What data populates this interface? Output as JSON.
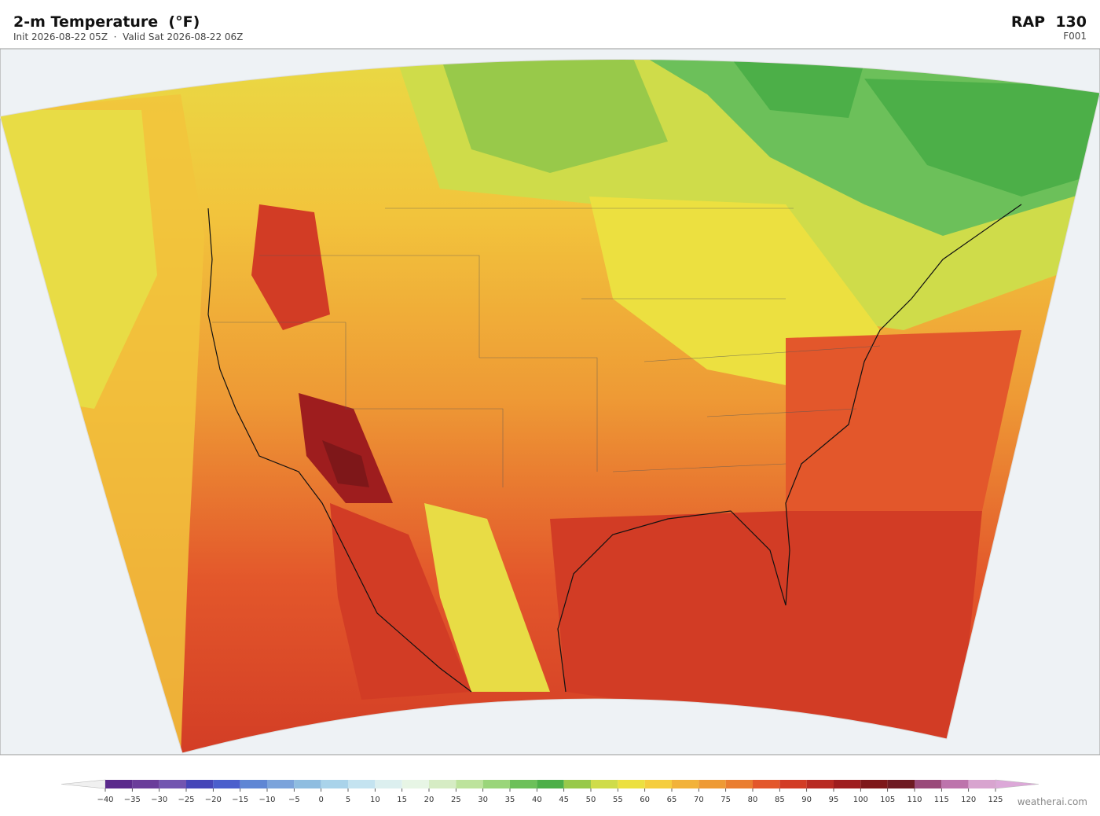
{
  "header": {
    "title": "2-m Temperature  (°F)",
    "subtitle": "Init 2026-08-22 05Z  ·  Valid Sat 2026-08-22 06Z",
    "model": "RAP  130",
    "forecast_hour": "F001"
  },
  "colorbar": {
    "ticks": [
      {
        "value": -40,
        "label": "−40"
      },
      {
        "value": -35,
        "label": "−35"
      },
      {
        "value": -30,
        "label": "−30"
      },
      {
        "value": -25,
        "label": "−25"
      },
      {
        "value": -20,
        "label": "−20"
      },
      {
        "value": -15,
        "label": "−15"
      },
      {
        "value": -10,
        "label": "−10"
      },
      {
        "value": -5,
        "label": "−5"
      },
      0,
      5,
      10,
      15,
      20,
      25,
      30,
      35,
      40,
      45,
      50,
      55,
      60,
      65,
      70,
      75,
      80,
      85,
      90,
      95,
      100,
      105,
      110,
      115,
      120,
      125
    ],
    "colors": [
      "#5b2a8c",
      "#6a3d9a",
      "#7255b0",
      "#4646b8",
      "#4b5fcc",
      "#5f86d4",
      "#7ba3db",
      "#8fbde0",
      "#a9d3ea",
      "#c4e3f0",
      "#dcefef",
      "#e7f5e5",
      "#d6ecc4",
      "#bde39c",
      "#9ad57a",
      "#6cc05a",
      "#4caf48",
      "#98c94a",
      "#cfdc4a",
      "#ece040",
      "#f5cd3e",
      "#f2b23a",
      "#ee9a35",
      "#ea7d30",
      "#e3572b",
      "#d23c25",
      "#b82a22",
      "#9e1d1e",
      "#7e1719",
      "#6e1a22",
      "#9a4a7a",
      "#bd74ac",
      "#d8a4cf"
    ],
    "under_color": "#f0f0f0",
    "over_color": "#dca8d8"
  },
  "footer": {
    "credit": "weatherai.com"
  }
}
